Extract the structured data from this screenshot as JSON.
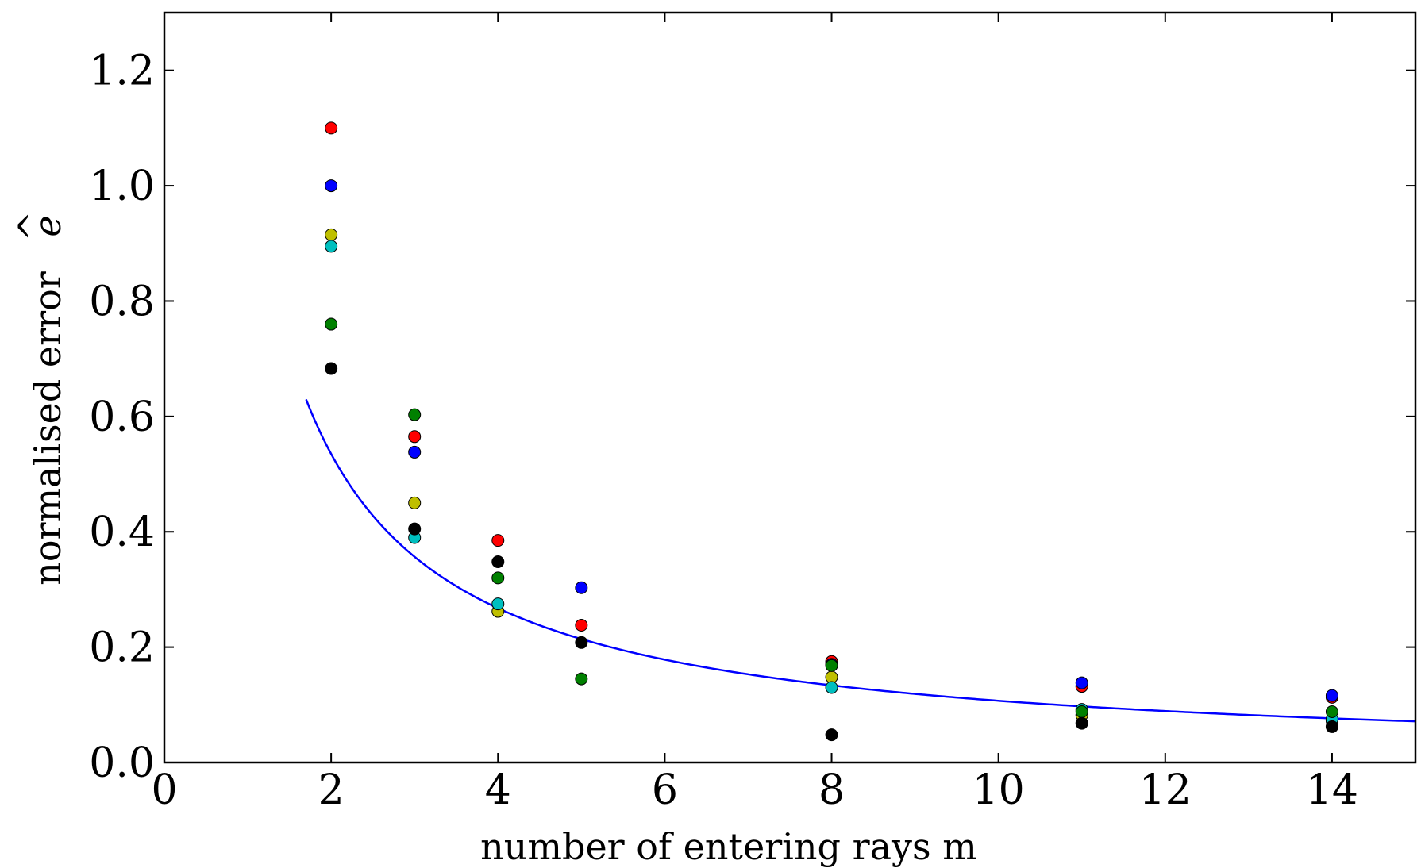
{
  "chart_data": {
    "type": "scatter",
    "title": "",
    "xlabel": "number of entering rays m",
    "ylabel": "normalised error",
    "ylabel_symbol": "e",
    "ylabel_accent": "^",
    "xlim": [
      0,
      15
    ],
    "ylim": [
      0,
      1.3
    ],
    "xticks": [
      0,
      2,
      4,
      6,
      8,
      10,
      12,
      14
    ],
    "xtick_labels": [
      "0",
      "2",
      "4",
      "6",
      "8",
      "10",
      "12",
      "14"
    ],
    "yticks": [
      0.0,
      0.2,
      0.4,
      0.6,
      0.8,
      1.0,
      1.2
    ],
    "ytick_labels": [
      "0.0",
      "0.2",
      "0.4",
      "0.6",
      "0.8",
      "1.0",
      "1.2"
    ],
    "grid": false,
    "legend": "none",
    "fit_curve": {
      "name": "fit",
      "formula": "y = 1.07 / x",
      "coefficient": 1.07,
      "x_range": [
        1.7,
        15
      ],
      "color": "#0000ff"
    },
    "series": [
      {
        "name": "red",
        "color": "#ff0000",
        "x": [
          2,
          3,
          4,
          5,
          8,
          11,
          14
        ],
        "y": [
          1.1,
          0.565,
          0.385,
          0.238,
          0.175,
          0.132,
          0.113
        ]
      },
      {
        "name": "blue",
        "color": "#0000ff",
        "x": [
          2,
          3,
          5,
          8,
          11,
          14
        ],
        "y": [
          1.0,
          0.538,
          0.303,
          0.17,
          0.138,
          0.116
        ]
      },
      {
        "name": "yellow",
        "color": "#bfbf00",
        "x": [
          2,
          3,
          4,
          8,
          11,
          14
        ],
        "y": [
          0.915,
          0.45,
          0.262,
          0.148,
          0.082,
          0.072
        ]
      },
      {
        "name": "cyan",
        "color": "#00bfbf",
        "x": [
          2,
          3,
          4,
          8,
          11,
          14
        ],
        "y": [
          0.895,
          0.39,
          0.275,
          0.13,
          0.092,
          0.075
        ]
      },
      {
        "name": "green",
        "color": "#008000",
        "x": [
          2,
          3,
          4,
          5,
          8,
          11,
          14
        ],
        "y": [
          0.76,
          0.603,
          0.32,
          0.145,
          0.168,
          0.088,
          0.088
        ]
      },
      {
        "name": "black",
        "color": "#000000",
        "x": [
          2,
          3,
          4,
          5,
          8,
          11,
          14
        ],
        "y": [
          0.683,
          0.405,
          0.348,
          0.208,
          0.048,
          0.068,
          0.062
        ]
      }
    ]
  }
}
